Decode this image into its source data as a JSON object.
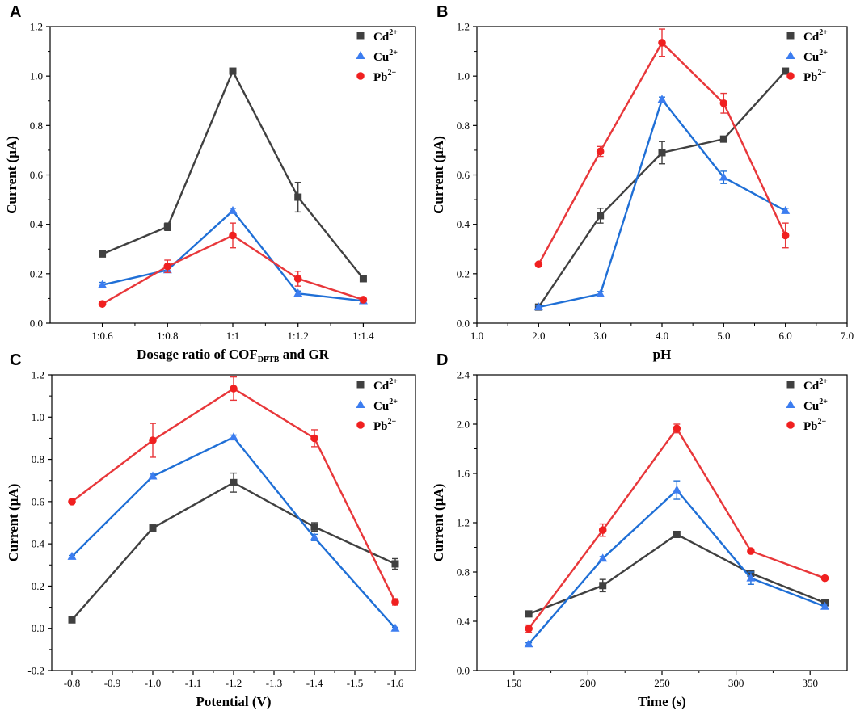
{
  "colors": {
    "Cd": "#404040",
    "Cu": "#1f6fd6",
    "Pb": "#e8373a",
    "CuMarker": "#3c7df0",
    "PbMarker": "#f02020"
  },
  "chart_data": [
    {
      "type": "line",
      "panel": "A",
      "xlabel": "Dosage ratio of COF",
      "xlabel_sub": "DPTB",
      "xlabel_suffix": " and GR",
      "ylabel": "Current (µA)",
      "categories": [
        "1:0.6",
        "1:0.8",
        "1:1",
        "1:1.2",
        "1:1.4"
      ],
      "ylim": [
        0,
        1.2
      ],
      "yticks": [
        "0.0",
        "0.2",
        "0.4",
        "0.6",
        "0.8",
        "1.0",
        "1.2"
      ],
      "series": [
        {
          "name": "Cd",
          "sup": "2+",
          "key": "Cd",
          "marker": "square",
          "values": [
            0.28,
            0.39,
            1.02,
            0.51,
            0.18
          ],
          "errors": [
            0.01,
            0.015,
            0.01,
            0.06,
            0.01
          ]
        },
        {
          "name": "Cu",
          "sup": "2+",
          "key": "Cu",
          "marker": "triangle",
          "values": [
            0.155,
            0.215,
            0.455,
            0.12,
            0.09
          ],
          "errors": [
            0.01,
            0.01,
            0.01,
            0.01,
            0.005
          ]
        },
        {
          "name": "Pb",
          "sup": "2+",
          "key": "Pb",
          "marker": "circle",
          "values": [
            0.078,
            0.23,
            0.355,
            0.18,
            0.095
          ],
          "errors": [
            0.005,
            0.025,
            0.05,
            0.03,
            0.005
          ]
        }
      ]
    },
    {
      "type": "line",
      "panel": "B",
      "xlabel": "pH",
      "ylabel": "Current (µA)",
      "xlim": [
        1.0,
        7.0
      ],
      "xticks": [
        "1.0",
        "2.0",
        "3.0",
        "4.0",
        "5.0",
        "6.0",
        "7.0"
      ],
      "ylim": [
        0,
        1.2
      ],
      "yticks": [
        "0.0",
        "0.2",
        "0.4",
        "0.6",
        "0.8",
        "1.0",
        "1.2"
      ],
      "x": [
        2.0,
        3.0,
        4.0,
        5.0,
        6.0
      ],
      "series": [
        {
          "name": "Cd",
          "sup": "2+",
          "key": "Cd",
          "marker": "square",
          "values": [
            0.065,
            0.435,
            0.69,
            0.745,
            1.02
          ],
          "errors": [
            0.005,
            0.03,
            0.045,
            0.01,
            0.01
          ]
        },
        {
          "name": "Cu",
          "sup": "2+",
          "key": "Cu",
          "marker": "triangle",
          "values": [
            0.065,
            0.118,
            0.905,
            0.59,
            0.455
          ],
          "errors": [
            0.005,
            0.01,
            0.01,
            0.025,
            0.01
          ]
        },
        {
          "name": "Pb",
          "sup": "2+",
          "key": "Pb",
          "marker": "circle",
          "values": [
            0.238,
            0.695,
            1.135,
            0.89,
            0.355
          ],
          "errors": [
            0.005,
            0.02,
            0.055,
            0.04,
            0.05
          ]
        }
      ]
    },
    {
      "type": "line",
      "panel": "C",
      "xlabel": "Potential (V)",
      "ylabel": "Current (µA)",
      "xlim": [
        -0.75,
        -1.65
      ],
      "xticks": [
        "-0.8",
        "-0.9",
        "-1.0",
        "-1.1",
        "-1.2",
        "-1.3",
        "-1.4",
        "-1.5",
        "-1.6"
      ],
      "ylim": [
        -0.2,
        1.2
      ],
      "yticks": [
        "-0.2",
        "0.0",
        "0.2",
        "0.4",
        "0.6",
        "0.8",
        "1.0",
        "1.2"
      ],
      "x": [
        -0.8,
        -1.0,
        -1.2,
        -1.4,
        -1.6
      ],
      "series": [
        {
          "name": "Cd",
          "sup": "2+",
          "key": "Cd",
          "marker": "square",
          "values": [
            0.04,
            0.475,
            0.69,
            0.48,
            0.305
          ],
          "errors": [
            0.005,
            0.01,
            0.045,
            0.02,
            0.025
          ]
        },
        {
          "name": "Cu",
          "sup": "2+",
          "key": "Cu",
          "marker": "triangle",
          "values": [
            0.34,
            0.72,
            0.905,
            0.43,
            0.0
          ],
          "errors": [
            0.005,
            0.01,
            0.01,
            0.015,
            0.005
          ]
        },
        {
          "name": "Pb",
          "sup": "2+",
          "key": "Pb",
          "marker": "circle",
          "values": [
            0.6,
            0.89,
            1.135,
            0.9,
            0.125
          ],
          "errors": [
            0.01,
            0.08,
            0.055,
            0.04,
            0.015
          ]
        }
      ]
    },
    {
      "type": "line",
      "panel": "D",
      "xlabel": "Time (s)",
      "ylabel": "Current (µA)",
      "xlim": [
        125,
        375
      ],
      "xticks": [
        "150",
        "200",
        "250",
        "300",
        "350"
      ],
      "ylim": [
        0,
        2.4
      ],
      "yticks": [
        "0.0",
        "0.4",
        "0.8",
        "1.2",
        "1.6",
        "2.0",
        "2.4"
      ],
      "x": [
        160,
        210,
        260,
        310,
        360
      ],
      "series": [
        {
          "name": "Cd",
          "sup": "2+",
          "key": "Cd",
          "marker": "square",
          "values": [
            0.46,
            0.69,
            1.105,
            0.79,
            0.55
          ],
          "errors": [
            0.01,
            0.05,
            0.015,
            0.01,
            0.01
          ]
        },
        {
          "name": "Cu",
          "sup": "2+",
          "key": "Cu",
          "marker": "triangle",
          "values": [
            0.215,
            0.91,
            1.465,
            0.75,
            0.52
          ],
          "errors": [
            0.01,
            0.015,
            0.075,
            0.05,
            0.02
          ]
        },
        {
          "name": "Pb",
          "sup": "2+",
          "key": "Pb",
          "marker": "circle",
          "values": [
            0.34,
            1.14,
            1.965,
            0.97,
            0.75
          ],
          "errors": [
            0.03,
            0.05,
            0.035,
            0.01,
            0.01
          ]
        }
      ]
    }
  ]
}
